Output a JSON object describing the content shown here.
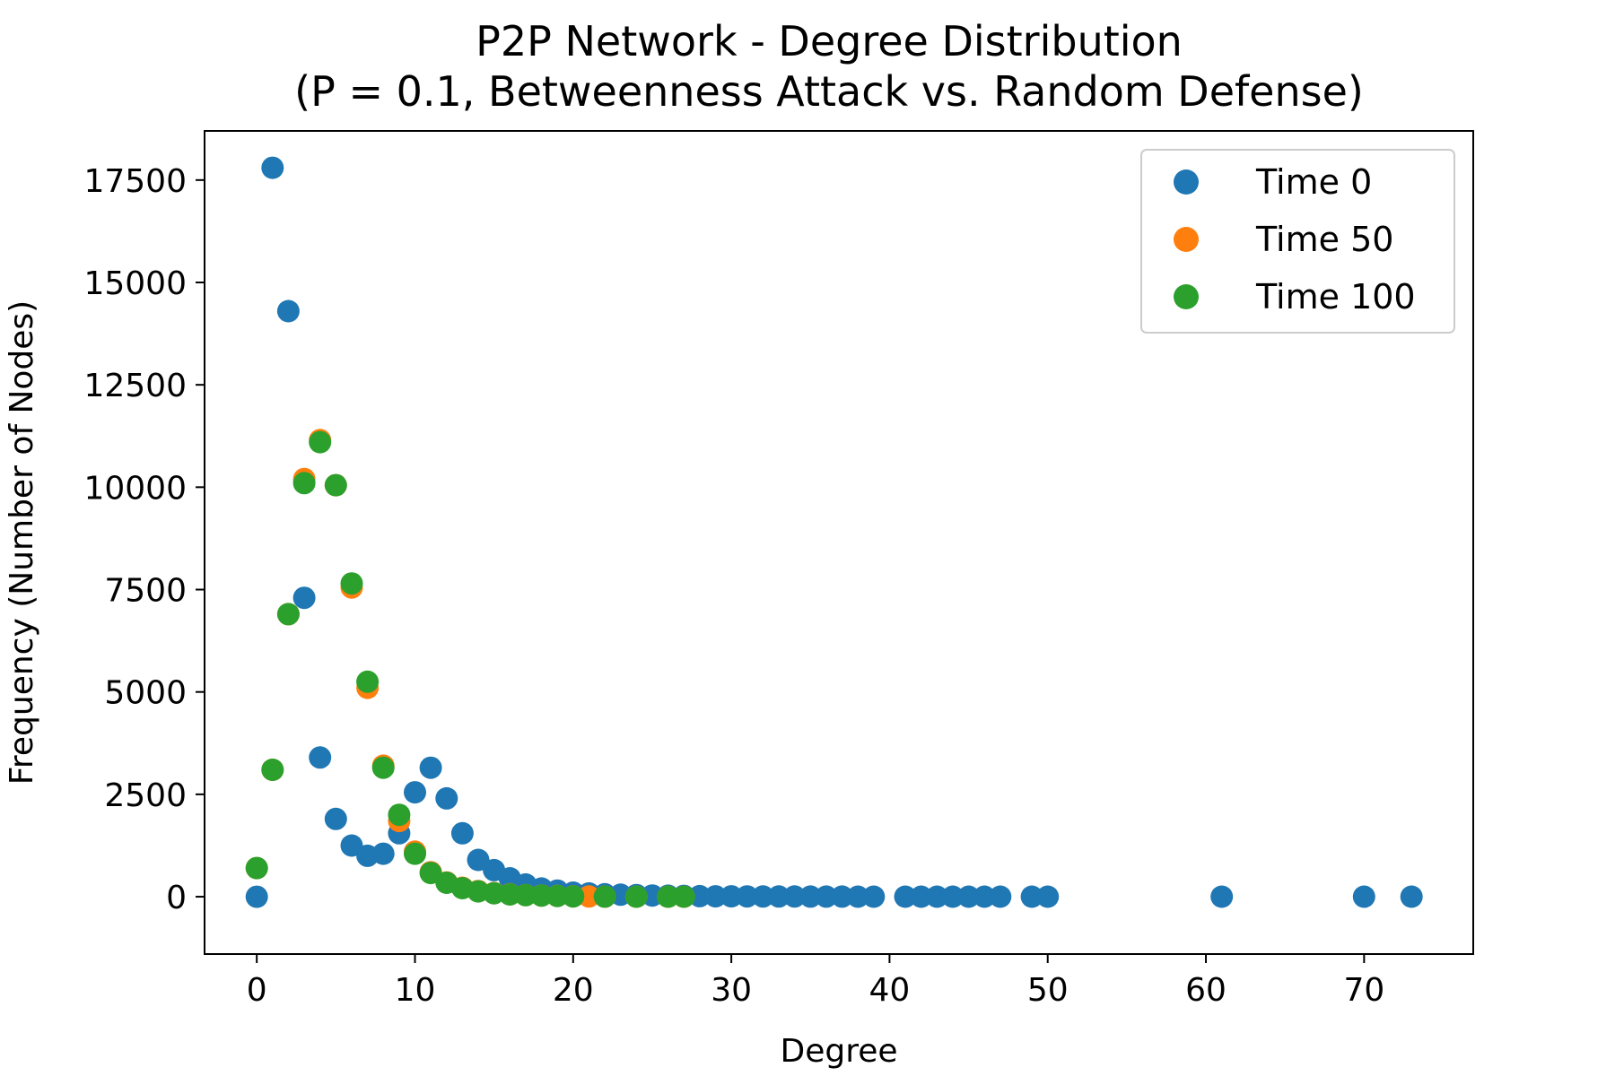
{
  "chart_data": {
    "type": "scatter",
    "title": "P2P Network - Degree Distribution",
    "subtitle": "(P = 0.1, Betweenness Attack vs. Random Defense)",
    "xlabel": "Degree",
    "ylabel": "Frequency (Number of Nodes)",
    "xlim": [
      -3.3,
      76.9
    ],
    "ylim": [
      -1400,
      18700
    ],
    "xticks": [
      0,
      10,
      20,
      30,
      40,
      50,
      60,
      70
    ],
    "yticks": [
      0,
      2500,
      5000,
      7500,
      10000,
      12500,
      15000,
      17500
    ],
    "grid": false,
    "legend_position": "top-right",
    "series": [
      {
        "name": "Time 0",
        "color": "#1f77b4",
        "points": [
          [
            0,
            0
          ],
          [
            1,
            17800
          ],
          [
            2,
            14300
          ],
          [
            3,
            7300
          ],
          [
            4,
            3400
          ],
          [
            5,
            1900
          ],
          [
            6,
            1250
          ],
          [
            7,
            1000
          ],
          [
            8,
            1050
          ],
          [
            9,
            1550
          ],
          [
            10,
            2550
          ],
          [
            11,
            3150
          ],
          [
            12,
            2400
          ],
          [
            13,
            1550
          ],
          [
            14,
            900
          ],
          [
            15,
            650
          ],
          [
            16,
            450
          ],
          [
            17,
            300
          ],
          [
            18,
            200
          ],
          [
            19,
            150
          ],
          [
            20,
            100
          ],
          [
            21,
            80
          ],
          [
            22,
            60
          ],
          [
            23,
            50
          ],
          [
            24,
            40
          ],
          [
            25,
            30
          ],
          [
            26,
            25
          ],
          [
            27,
            20
          ],
          [
            28,
            15
          ],
          [
            29,
            10
          ],
          [
            30,
            10
          ],
          [
            31,
            8
          ],
          [
            32,
            6
          ],
          [
            33,
            5
          ],
          [
            34,
            5
          ],
          [
            35,
            4
          ],
          [
            36,
            3
          ],
          [
            37,
            3
          ],
          [
            38,
            2
          ],
          [
            39,
            2
          ],
          [
            41,
            2
          ],
          [
            42,
            1
          ],
          [
            43,
            1
          ],
          [
            44,
            1
          ],
          [
            45,
            1
          ],
          [
            46,
            1
          ],
          [
            47,
            1
          ],
          [
            49,
            1
          ],
          [
            50,
            1
          ],
          [
            61,
            1
          ],
          [
            70,
            1
          ],
          [
            73,
            1
          ]
        ]
      },
      {
        "name": "Time 50",
        "color": "#ff7f0e",
        "points": [
          [
            0,
            700
          ],
          [
            1,
            3100
          ],
          [
            2,
            6900
          ],
          [
            3,
            10200
          ],
          [
            4,
            11150
          ],
          [
            5,
            10050
          ],
          [
            6,
            7550
          ],
          [
            7,
            5100
          ],
          [
            8,
            3200
          ],
          [
            9,
            1850
          ],
          [
            10,
            1100
          ],
          [
            11,
            600
          ],
          [
            12,
            350
          ],
          [
            13,
            220
          ],
          [
            14,
            140
          ],
          [
            15,
            90
          ],
          [
            16,
            60
          ],
          [
            17,
            40
          ],
          [
            18,
            30
          ],
          [
            19,
            20
          ],
          [
            20,
            10
          ],
          [
            21,
            5
          ],
          [
            22,
            3
          ],
          [
            24,
            2
          ],
          [
            26,
            1
          ],
          [
            27,
            1
          ]
        ]
      },
      {
        "name": "Time 100",
        "color": "#2ca02c",
        "points": [
          [
            0,
            700
          ],
          [
            1,
            3100
          ],
          [
            2,
            6900
          ],
          [
            3,
            10100
          ],
          [
            4,
            11100
          ],
          [
            5,
            10050
          ],
          [
            6,
            7650
          ],
          [
            7,
            5250
          ],
          [
            8,
            3150
          ],
          [
            9,
            2000
          ],
          [
            10,
            1050
          ],
          [
            11,
            580
          ],
          [
            12,
            340
          ],
          [
            13,
            210
          ],
          [
            14,
            130
          ],
          [
            15,
            85
          ],
          [
            16,
            55
          ],
          [
            17,
            38
          ],
          [
            18,
            28
          ],
          [
            19,
            18
          ],
          [
            20,
            8
          ],
          [
            22,
            3
          ],
          [
            24,
            2
          ],
          [
            26,
            1
          ],
          [
            27,
            1
          ]
        ]
      }
    ]
  }
}
